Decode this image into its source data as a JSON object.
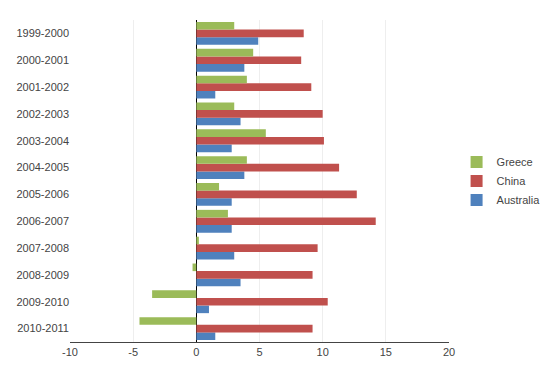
{
  "chart_data": {
    "type": "bar",
    "orientation": "horizontal",
    "categories": [
      "2010-2011",
      "2009-2010",
      "2008-2009",
      "2007-2008",
      "2006-2007",
      "2005-2006",
      "2004-2005",
      "2003-2004",
      "2002-2003",
      "2001-2002",
      "2000-2001",
      "1999-2000"
    ],
    "series": [
      {
        "name": "Greece",
        "color": "#9bbb59",
        "values": [
          -4.5,
          -3.5,
          -0.3,
          0.2,
          2.5,
          1.8,
          4.0,
          5.5,
          3.0,
          4.0,
          4.5,
          3.0
        ]
      },
      {
        "name": "China",
        "color": "#c0504d",
        "values": [
          9.2,
          10.4,
          9.2,
          9.6,
          14.2,
          12.7,
          11.3,
          10.1,
          10.0,
          9.1,
          8.3,
          8.5
        ]
      },
      {
        "name": "Australia",
        "color": "#4f81bd",
        "values": [
          1.5,
          1.0,
          3.5,
          3.0,
          2.8,
          2.8,
          3.8,
          2.8,
          3.5,
          1.5,
          3.8,
          4.9
        ]
      }
    ],
    "xlim": [
      -10,
      20
    ],
    "xticks": [
      -10,
      -5,
      0,
      5,
      10,
      15,
      20
    ],
    "grid": true,
    "legend": "right"
  }
}
